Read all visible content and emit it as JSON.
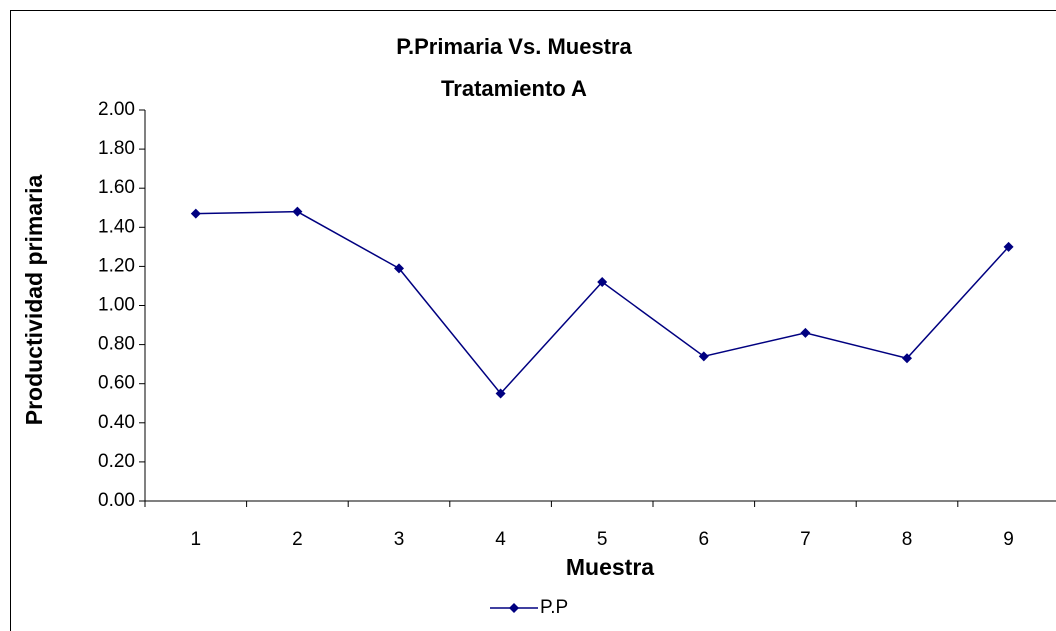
{
  "chart_data": {
    "type": "line",
    "title": "P.Primaria Vs. Muestra",
    "subtitle": "Tratamiento A",
    "x_label": "Muestra",
    "y_label": "Productividad primaria",
    "categories": [
      "1",
      "2",
      "3",
      "4",
      "5",
      "6",
      "7",
      "8",
      "9"
    ],
    "series": [
      {
        "name": "P.P",
        "color": "#000080",
        "values": [
          1.47,
          1.48,
          1.19,
          0.55,
          1.12,
          0.74,
          0.86,
          0.73,
          1.3
        ]
      }
    ],
    "ylim": [
      0,
      2
    ],
    "yticks": [
      {
        "value": 0,
        "label": "0.00"
      },
      {
        "value": 0.2,
        "label": "0.20"
      },
      {
        "value": 0.4,
        "label": "0.40"
      },
      {
        "value": 0.6,
        "label": "0.60"
      },
      {
        "value": 0.8,
        "label": "0.80"
      },
      {
        "value": 1,
        "label": "1.00"
      },
      {
        "value": 1.2,
        "label": "1.20"
      },
      {
        "value": 1.4,
        "label": "1.40"
      },
      {
        "value": 1.6,
        "label": "1.60"
      },
      {
        "value": 1.8,
        "label": "1.80"
      },
      {
        "value": 2,
        "label": "2.00"
      }
    ],
    "legend": "bottom"
  }
}
